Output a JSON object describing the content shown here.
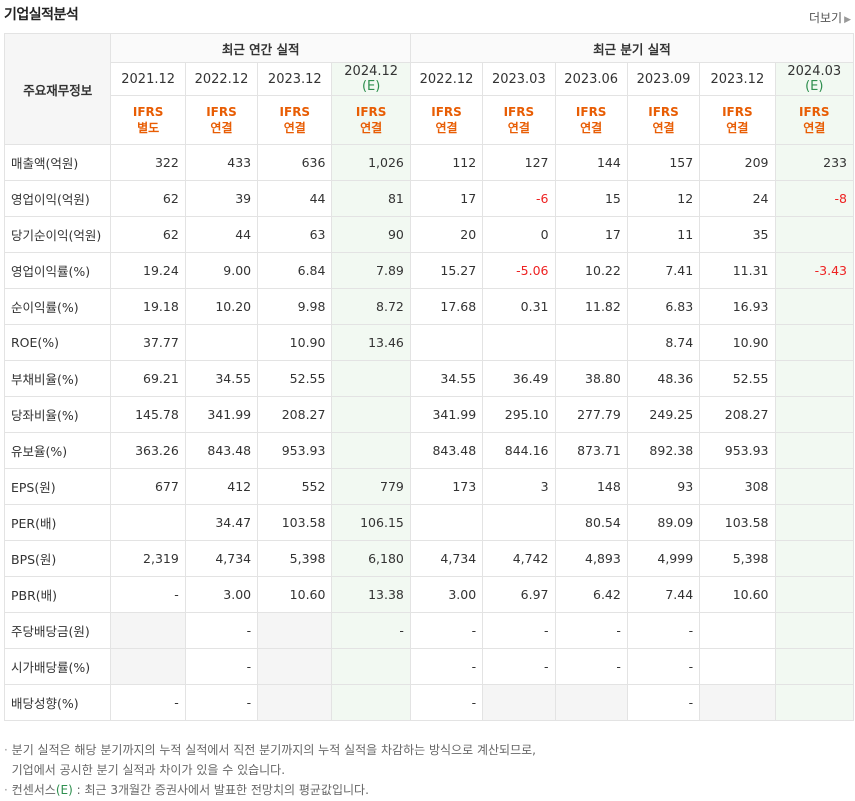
{
  "header": {
    "title": "기업실적분석",
    "more_label": "더보기"
  },
  "table": {
    "row_header_label": "주요재무정보",
    "annual_label": "최근 연간 실적",
    "quarter_label": "최근 분기 실적",
    "periods": [
      {
        "label": "2021.12",
        "standard": "IFRS",
        "basis": "별도",
        "estimate": false
      },
      {
        "label": "2022.12",
        "standard": "IFRS",
        "basis": "연결",
        "estimate": false
      },
      {
        "label": "2023.12",
        "standard": "IFRS",
        "basis": "연결",
        "estimate": false
      },
      {
        "label": "2024.12",
        "est_label": "(E)",
        "standard": "IFRS",
        "basis": "연결",
        "estimate": true
      },
      {
        "label": "2022.12",
        "standard": "IFRS",
        "basis": "연결",
        "estimate": false
      },
      {
        "label": "2023.03",
        "standard": "IFRS",
        "basis": "연결",
        "estimate": false
      },
      {
        "label": "2023.06",
        "standard": "IFRS",
        "basis": "연결",
        "estimate": false
      },
      {
        "label": "2023.09",
        "standard": "IFRS",
        "basis": "연결",
        "estimate": false
      },
      {
        "label": "2023.12",
        "standard": "IFRS",
        "basis": "연결",
        "estimate": false
      },
      {
        "label": "2024.03",
        "est_label": "(E)",
        "standard": "IFRS",
        "basis": "연결",
        "estimate": true
      }
    ],
    "rows": [
      {
        "label": "매출액(억원)",
        "values": [
          "322",
          "433",
          "636",
          "1,026",
          "112",
          "127",
          "144",
          "157",
          "209",
          "233"
        ]
      },
      {
        "label": "영업이익(억원)",
        "values": [
          "62",
          "39",
          "44",
          "81",
          "17",
          "-6",
          "15",
          "12",
          "24",
          "-8"
        ]
      },
      {
        "label": "당기순이익(억원)",
        "values": [
          "62",
          "44",
          "63",
          "90",
          "20",
          "0",
          "17",
          "11",
          "35",
          ""
        ]
      },
      {
        "label": "영업이익률(%)",
        "values": [
          "19.24",
          "9.00",
          "6.84",
          "7.89",
          "15.27",
          "-5.06",
          "10.22",
          "7.41",
          "11.31",
          "-3.43"
        ]
      },
      {
        "label": "순이익률(%)",
        "values": [
          "19.18",
          "10.20",
          "9.98",
          "8.72",
          "17.68",
          "0.31",
          "11.82",
          "6.83",
          "16.93",
          ""
        ]
      },
      {
        "label": "ROE(%)",
        "values": [
          "37.77",
          "",
          "10.90",
          "13.46",
          "",
          "",
          "",
          "8.74",
          "10.90",
          ""
        ]
      },
      {
        "label": "부채비율(%)",
        "values": [
          "69.21",
          "34.55",
          "52.55",
          "",
          "34.55",
          "36.49",
          "38.80",
          "48.36",
          "52.55",
          ""
        ]
      },
      {
        "label": "당좌비율(%)",
        "values": [
          "145.78",
          "341.99",
          "208.27",
          "",
          "341.99",
          "295.10",
          "277.79",
          "249.25",
          "208.27",
          ""
        ]
      },
      {
        "label": "유보율(%)",
        "values": [
          "363.26",
          "843.48",
          "953.93",
          "",
          "843.48",
          "844.16",
          "873.71",
          "892.38",
          "953.93",
          ""
        ]
      },
      {
        "label": "EPS(원)",
        "values": [
          "677",
          "412",
          "552",
          "779",
          "173",
          "3",
          "148",
          "93",
          "308",
          ""
        ]
      },
      {
        "label": "PER(배)",
        "values": [
          "",
          "34.47",
          "103.58",
          "106.15",
          "",
          "",
          "80.54",
          "89.09",
          "103.58",
          ""
        ]
      },
      {
        "label": "BPS(원)",
        "values": [
          "2,319",
          "4,734",
          "5,398",
          "6,180",
          "4,734",
          "4,742",
          "4,893",
          "4,999",
          "5,398",
          ""
        ]
      },
      {
        "label": "PBR(배)",
        "values": [
          "-",
          "3.00",
          "10.60",
          "13.38",
          "3.00",
          "6.97",
          "6.42",
          "7.44",
          "10.60",
          ""
        ]
      },
      {
        "label": "주당배당금(원)",
        "values": [
          "",
          "-",
          "",
          "-",
          "-",
          "-",
          "-",
          "-",
          "",
          ""
        ]
      },
      {
        "label": "시가배당률(%)",
        "values": [
          "",
          "-",
          "",
          "",
          "-",
          "-",
          "-",
          "-",
          "",
          ""
        ]
      },
      {
        "label": "배당성향(%)",
        "values": [
          "-",
          "-",
          "",
          "",
          "-",
          "",
          "",
          "-",
          "",
          ""
        ]
      }
    ]
  },
  "notes": {
    "line1": "분기 실적은 해당 분기까지의 누적 실적에서 직전 분기까지의 누적 실적을 차감하는 방식으로 계산되므로,",
    "line2": "기업에서 공시한 분기 실적과 차이가 있을 수 있습니다.",
    "line3_pre": "컨센서스",
    "line3_e": "(E)",
    "line3_post": " : 최근 3개월간 증권사에서 발표한 전망치의 평균값입니다."
  },
  "colors": {
    "accent": "#e85d04",
    "estimate": "#2f8f4f",
    "negative": "#e22222"
  }
}
